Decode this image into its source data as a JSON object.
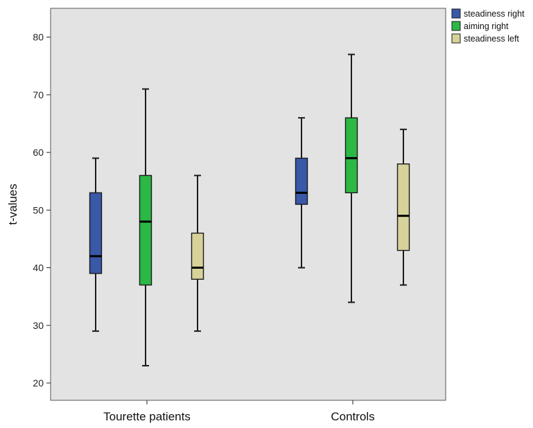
{
  "chart_data": {
    "type": "boxplot",
    "title": "",
    "xlabel": "",
    "ylabel": "t-values",
    "ylim": [
      17,
      85
    ],
    "yticks": [
      20,
      30,
      40,
      50,
      60,
      70,
      80
    ],
    "grid": false,
    "legend_position": "top-right",
    "categories": [
      "Tourette patients",
      "Controls"
    ],
    "series": [
      {
        "name": "steadiness  right",
        "color": "#3a58a8",
        "boxes": [
          {
            "min": 29,
            "q1": 39,
            "median": 42,
            "q3": 53,
            "max": 59
          },
          {
            "min": 40,
            "q1": 51,
            "median": 53,
            "q3": 59,
            "max": 66
          }
        ]
      },
      {
        "name": "aiming  right",
        "color": "#2cb845",
        "boxes": [
          {
            "min": 23,
            "q1": 37,
            "median": 48,
            "q3": 56,
            "max": 71
          },
          {
            "min": 34,
            "q1": 53,
            "median": 59,
            "q3": 66,
            "max": 77
          }
        ]
      },
      {
        "name": "steadiness  left",
        "color": "#d6d29a",
        "boxes": [
          {
            "min": 29,
            "q1": 38,
            "median": 40,
            "q3": 46,
            "max": 56
          },
          {
            "min": 37,
            "q1": 43,
            "median": 49,
            "q3": 58,
            "max": 64
          }
        ]
      }
    ]
  },
  "colors": {
    "plot_background": "#e3e3e3",
    "frame": "#555555",
    "outline": "#1a1a1a"
  }
}
